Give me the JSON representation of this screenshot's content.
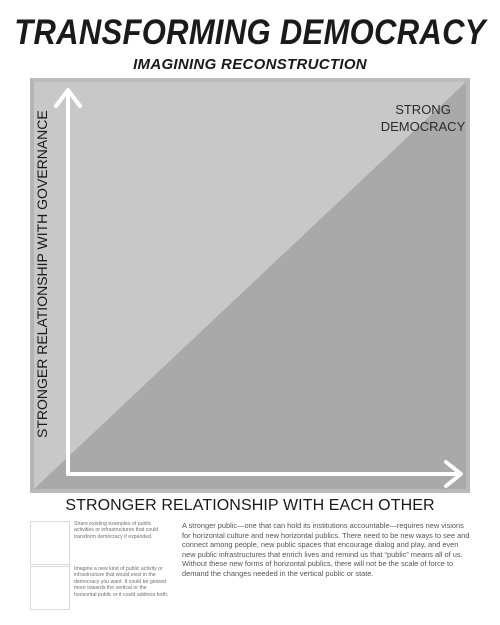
{
  "title": "TRANSFORMING DEMOCRACY",
  "subtitle": "IMAGINING RECONSTRUCTION",
  "diagram": {
    "y_axis_label": "STRONGER RELATIONSHIP WITH GOVERNANCE",
    "x_axis_label": "STRONGER RELATIONSHIP WITH EACH OTHER",
    "corner_label_line1": "STRONG",
    "corner_label_line2": "DEMOCRACY",
    "colors": {
      "upper_left_triangle": "#c8c8c8",
      "lower_right_triangle": "#a9a9a9",
      "frame": "#b9b9b9",
      "arrows": "#ffffff"
    }
  },
  "notes": [
    {
      "text": "Share existing examples of public activities or infrastructures that could transform democracy if expanded."
    },
    {
      "text": "Imagine a new kind of public activity or infrastructure that would exist in the democracy you want. It could be geared more towards the vertical or the horizontal public or it could address both."
    }
  ],
  "body_text": "A stronger public—one that can hold its institutions accountable—requires new visions for horizontal culture and new horizontal publics. There need to be new ways to see and connect among people, new public spaces that encourage dialog and play, and even new public infrastructures that enrich lives and remind us that “public” means all of us. Without these new forms of horizontal publics, there will not be the scale of force to demand the changes needed in the vertical public or state."
}
